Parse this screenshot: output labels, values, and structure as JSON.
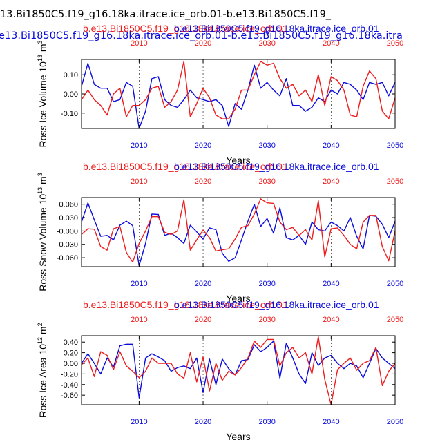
{
  "header": {
    "line1": "13.Bi1850C5.f19_g16.18ka.itrace.ice_orb.01-b.e13.Bi1850C5.f19_",
    "line2": "e13.Bi1850C5.f19_g16.18ka.itrace.ice_orb.01-b.e13.Bi1850C5.f19_g16.18ka.itra"
  },
  "colors": {
    "red": "#ee1c1c",
    "blue": "#0b0bdd",
    "black": "#000000"
  },
  "chart_data": [
    {
      "type": "line",
      "title_red": "b.e13.Bi1850C5.f19_g16.18ka.itrace.ice_orb.01",
      "title_blue": "b.e13.Bi1850C5.f19_g16.18ka.itrace.ice_orb.01",
      "ylabel": "Ross Ice Volume 10",
      "ylabel_exp": "13",
      "ylabel_unit": " m",
      "ylabel_unit_exp": "3",
      "xlabel": "Years",
      "xlim": [
        2001,
        2050
      ],
      "ylim": [
        -0.18,
        0.18
      ],
      "yticks": [
        0.1,
        0.0,
        -0.1
      ],
      "ytick_labels": [
        "0.10",
        "0.00",
        "-0.10"
      ],
      "xticks": [
        2010,
        2020,
        2030,
        2040,
        2050
      ],
      "xtick_labels": [
        "2010",
        "2020",
        "2030",
        "2040",
        "2050"
      ],
      "x": [
        2001,
        2002,
        2003,
        2004,
        2005,
        2006,
        2007,
        2008,
        2009,
        2010,
        2011,
        2012,
        2013,
        2014,
        2015,
        2016,
        2017,
        2018,
        2019,
        2020,
        2021,
        2022,
        2023,
        2024,
        2025,
        2026,
        2027,
        2028,
        2029,
        2030,
        2031,
        2032,
        2033,
        2034,
        2035,
        2036,
        2037,
        2038,
        2039,
        2040,
        2041,
        2042,
        2043,
        2044,
        2045,
        2046,
        2047,
        2048,
        2049,
        2050
      ],
      "series": [
        {
          "name": "blue",
          "color": "blue",
          "values": [
            0.04,
            0.16,
            0.05,
            0.03,
            0.03,
            -0.04,
            -0.03,
            0.06,
            0.04,
            -0.18,
            -0.09,
            0.08,
            0.09,
            -0.03,
            -0.06,
            -0.07,
            -0.03,
            0.02,
            -0.02,
            -0.03,
            -0.04,
            -0.03,
            -0.06,
            -0.17,
            -0.05,
            -0.08,
            0.02,
            0.15,
            0.03,
            0.06,
            0.02,
            -0.01,
            0.08,
            -0.06,
            -0.06,
            -0.09,
            -0.07,
            -0.02,
            -0.04,
            0.02,
            0.0,
            0.06,
            0.05,
            0.02,
            -0.03,
            0.06,
            0.05,
            0.06,
            -0.01,
            0.06
          ]
        },
        {
          "name": "red",
          "color": "red",
          "values": [
            -0.03,
            0.02,
            -0.03,
            -0.06,
            -0.11,
            0.0,
            0.03,
            -0.12,
            -0.06,
            -0.06,
            -0.03,
            0.03,
            0.04,
            -0.07,
            -0.04,
            0.02,
            0.17,
            -0.12,
            -0.05,
            0.03,
            -0.02,
            -0.11,
            -0.13,
            -0.13,
            -0.08,
            0.02,
            0.02,
            0.1,
            0.17,
            0.15,
            0.16,
            0.08,
            0.03,
            0.05,
            -0.01,
            0.02,
            -0.04,
            0.1,
            -0.06,
            0.09,
            0.07,
            0.02,
            -0.11,
            -0.12,
            0.04,
            0.12,
            0.08,
            -0.09,
            -0.13,
            -0.02
          ]
        }
      ]
    },
    {
      "type": "line",
      "title_red": "b.e13.Bi1850C5.f19_g16.18ka.itrace.ice_orb.01",
      "title_blue": "b.e13.Bi1850C5.f19_g16.18ka.itrace.ice_orb.01",
      "ylabel": "Ross Snow Volume 10",
      "ylabel_exp": "13",
      "ylabel_unit": " m",
      "ylabel_unit_exp": "3",
      "xlabel": "Years",
      "xlim": [
        2001,
        2050
      ],
      "ylim": [
        -0.08,
        0.075
      ],
      "yticks": [
        0.06,
        0.03,
        0.0,
        -0.03,
        -0.06
      ],
      "ytick_labels": [
        "0.060",
        "0.030",
        "-0.000",
        "-0.030",
        "-0.060"
      ],
      "xticks": [
        2010,
        2020,
        2030,
        2040,
        2050
      ],
      "xtick_labels": [
        "2010",
        "2020",
        "2030",
        "2040",
        "2050"
      ],
      "x": [
        2001,
        2002,
        2003,
        2004,
        2005,
        2006,
        2007,
        2008,
        2009,
        2010,
        2011,
        2012,
        2013,
        2014,
        2015,
        2016,
        2017,
        2018,
        2019,
        2020,
        2021,
        2022,
        2023,
        2024,
        2025,
        2026,
        2027,
        2028,
        2029,
        2030,
        2031,
        2032,
        2033,
        2034,
        2035,
        2036,
        2037,
        2038,
        2039,
        2040,
        2041,
        2042,
        2043,
        2044,
        2045,
        2046,
        2047,
        2048,
        2049,
        2050
      ],
      "series": [
        {
          "name": "blue",
          "color": "blue",
          "values": [
            0.02,
            0.063,
            0.025,
            -0.012,
            -0.01,
            -0.02,
            0.013,
            0.022,
            0.012,
            -0.078,
            -0.028,
            0.038,
            0.037,
            -0.01,
            -0.005,
            -0.015,
            -0.028,
            0.013,
            -0.002,
            -0.018,
            0.007,
            0.003,
            -0.05,
            -0.068,
            -0.06,
            -0.02,
            0.022,
            0.06,
            0.01,
            0.028,
            -0.005,
            0.052,
            -0.015,
            -0.02,
            -0.01,
            -0.03,
            0.02,
            0.003,
            0.0,
            0.02,
            0.012,
            0.0,
            0.03,
            -0.012,
            -0.04,
            0.035,
            0.033,
            0.015,
            -0.015,
            0.022
          ]
        },
        {
          "name": "red",
          "color": "red",
          "values": [
            -0.008,
            0.005,
            0.004,
            -0.035,
            -0.043,
            0.005,
            0.01,
            -0.048,
            -0.07,
            -0.028,
            0.0,
            0.032,
            0.032,
            -0.003,
            -0.008,
            0.0,
            0.07,
            -0.043,
            -0.02,
            0.002,
            -0.015,
            -0.045,
            -0.042,
            -0.04,
            -0.018,
            0.008,
            0.012,
            0.038,
            0.072,
            0.063,
            0.062,
            0.02,
            0.003,
            0.008,
            -0.01,
            0.003,
            -0.02,
            0.068,
            -0.058,
            0.005,
            0.007,
            -0.01,
            -0.03,
            -0.04,
            0.02,
            0.035,
            0.035,
            -0.035,
            -0.067,
            0.0
          ]
        }
      ]
    },
    {
      "type": "line",
      "title_red": "b.e13.Bi1850C5.f19_g16.18ka.itrace.ice_orb.01",
      "title_blue": "b.e13.Bi1850C5.f19_g16.18ka.itrace.ice_orb.01",
      "ylabel": "Ross Ice Area 10",
      "ylabel_exp": "12",
      "ylabel_unit": " m",
      "ylabel_unit_exp": "2",
      "xlabel": "Years",
      "xlim": [
        2001,
        2050
      ],
      "ylim": [
        -0.78,
        0.52
      ],
      "yticks": [
        0.4,
        0.2,
        0.0,
        -0.2,
        -0.4,
        -0.6
      ],
      "ytick_labels": [
        "0.40",
        "0.20",
        "0.00",
        "-0.20",
        "-0.40",
        "-0.60"
      ],
      "xticks": [
        2010,
        2020,
        2030,
        2040,
        2050
      ],
      "xtick_labels": [
        "2010",
        "2020",
        "2030",
        "2040",
        "2050"
      ],
      "x": [
        2001,
        2002,
        2003,
        2004,
        2005,
        2006,
        2007,
        2008,
        2009,
        2010,
        2011,
        2012,
        2013,
        2014,
        2015,
        2016,
        2017,
        2018,
        2019,
        2020,
        2021,
        2022,
        2023,
        2024,
        2025,
        2026,
        2027,
        2028,
        2029,
        2030,
        2031,
        2032,
        2033,
        2034,
        2035,
        2036,
        2037,
        2038,
        2039,
        2040,
        2041,
        2042,
        2043,
        2044,
        2045,
        2046,
        2047,
        2048,
        2049,
        2050
      ],
      "series": [
        {
          "name": "blue",
          "color": "blue",
          "values": [
            0.0,
            0.18,
            0.0,
            -0.2,
            0.1,
            -0.07,
            0.33,
            0.36,
            0.36,
            -0.65,
            0.1,
            0.18,
            0.12,
            0.05,
            -0.15,
            -0.08,
            -0.05,
            -0.1,
            0.1,
            -0.55,
            0.08,
            -0.4,
            0.08,
            -0.1,
            -0.22,
            0.05,
            0.07,
            0.35,
            0.22,
            0.3,
            0.42,
            -0.28,
            0.38,
            0.1,
            -0.2,
            -0.38,
            0.2,
            -0.04,
            0.1,
            0.15,
            0.0,
            -0.1,
            0.0,
            -0.05,
            -0.27,
            0.0,
            0.28,
            0.1,
            0.0,
            -0.1
          ]
        },
        {
          "name": "red",
          "color": "red",
          "values": [
            -0.03,
            0.1,
            -0.25,
            0.22,
            0.15,
            -0.12,
            0.22,
            -0.05,
            -0.15,
            -0.27,
            -0.15,
            0.1,
            0.0,
            0.0,
            0.0,
            -0.2,
            -0.28,
            0.2,
            -0.35,
            0.12,
            -0.52,
            0.0,
            -0.32,
            -0.15,
            -0.22,
            -0.08,
            0.1,
            0.42,
            0.3,
            0.45,
            0.45,
            -0.05,
            0.2,
            0.3,
            0.1,
            0.2,
            -0.2,
            0.5,
            -0.3,
            -0.78,
            -0.12,
            0.0,
            0.1,
            -0.13,
            0.0,
            0.05,
            0.3,
            -0.42,
            -0.15,
            0.0
          ]
        }
      ]
    }
  ]
}
